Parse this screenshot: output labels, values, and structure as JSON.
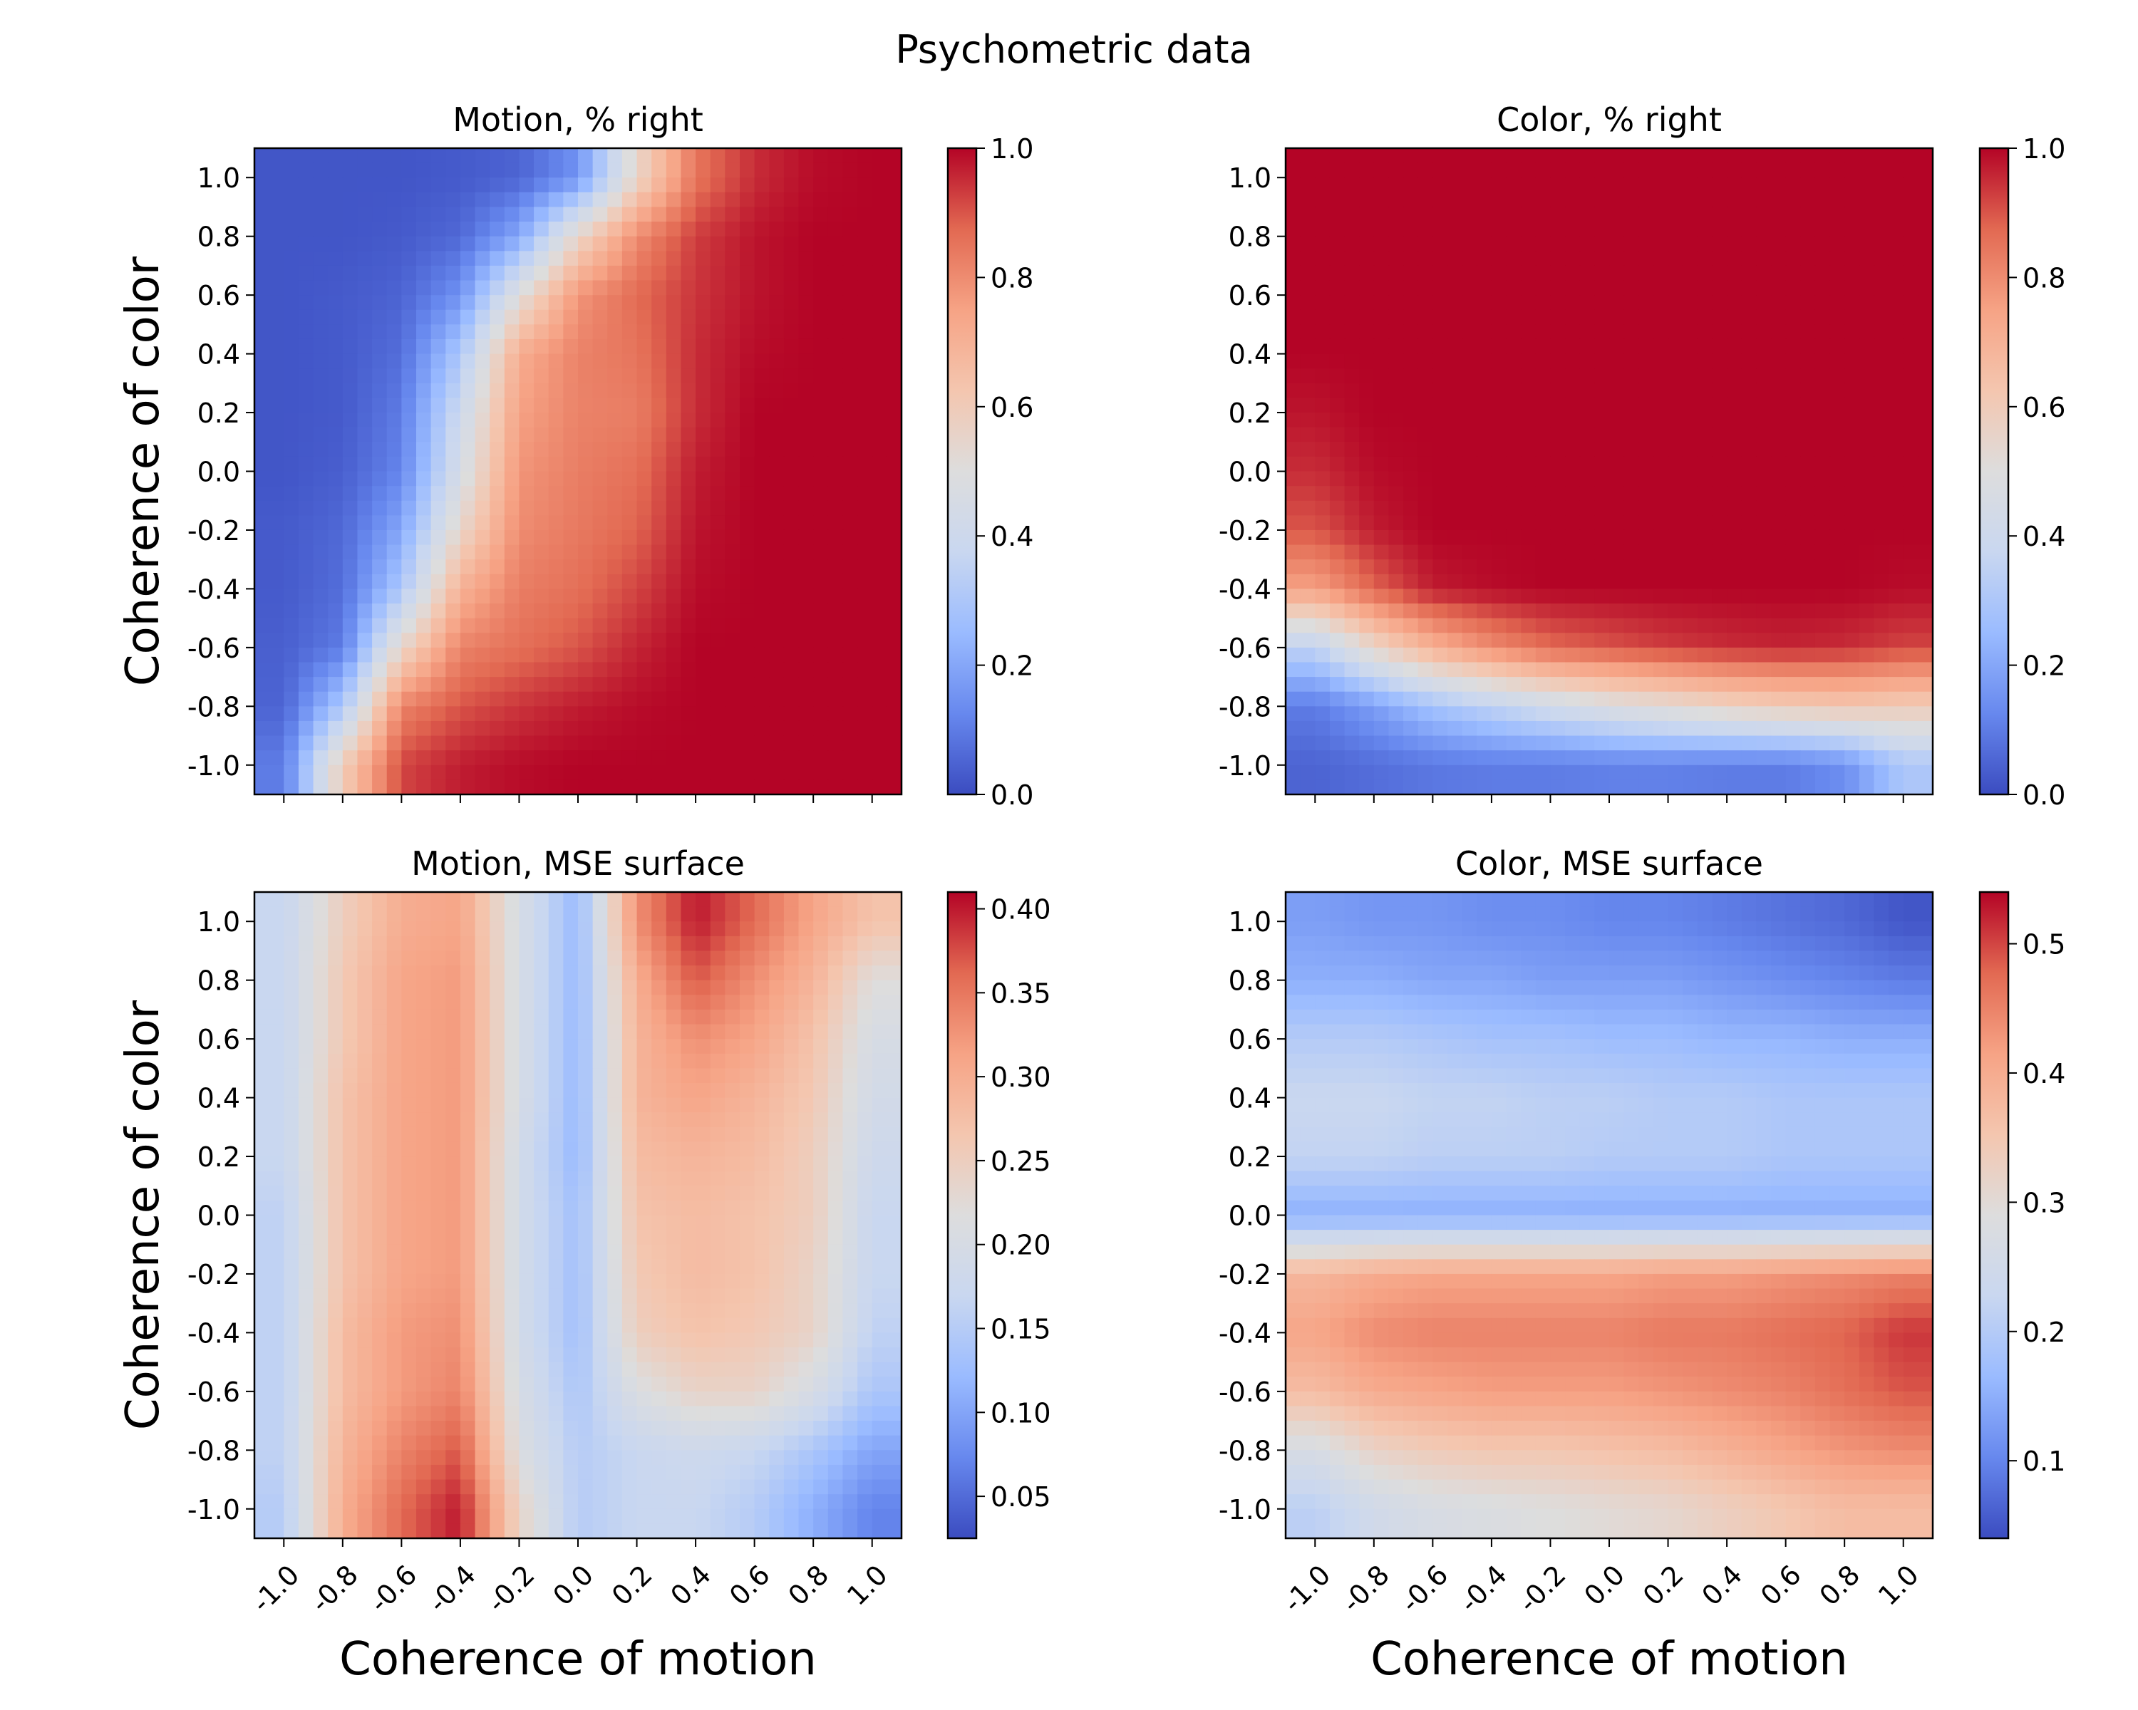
{
  "figure": {
    "suptitle": "Psychometric data"
  },
  "colors": {
    "coolwarm": [
      "#3b4cc0",
      "#6788ee",
      "#9abbff",
      "#c9d7f0",
      "#dddddd",
      "#f4c6af",
      "#f6a385",
      "#e26952",
      "#b40426"
    ]
  },
  "chart_data": [
    {
      "type": "heatmap",
      "title": "Motion, % right",
      "xlabel": "",
      "ylabel": "Coherence of color",
      "x_ticks": [
        "-1.0",
        "-0.8",
        "-0.6",
        "-0.4",
        "-0.2",
        "0.0",
        "0.2",
        "0.4",
        "0.6",
        "0.8",
        "1.0"
      ],
      "y_ticks": [
        "-1.0",
        "-0.8",
        "-0.6",
        "-0.4",
        "-0.2",
        "0.0",
        "0.2",
        "0.4",
        "0.6",
        "0.8",
        "1.0"
      ],
      "x_tick_labels_visible": false,
      "xlim": [
        -1.1,
        1.1
      ],
      "ylim": [
        -1.1,
        1.1
      ],
      "colorbar": {
        "vmin": 0.0,
        "vmax": 1.0,
        "ticks": [
          "0.0",
          "0.2",
          "0.4",
          "0.6",
          "0.8",
          "1.0"
        ]
      },
      "x": [
        -1.0,
        -0.8,
        -0.6,
        -0.4,
        -0.2,
        0.0,
        0.2,
        0.4,
        0.6,
        0.8,
        1.0
      ],
      "y": [
        1.0,
        0.8,
        0.6,
        0.4,
        0.2,
        0.0,
        -0.2,
        -0.4,
        -0.6,
        -0.8,
        -1.0
      ],
      "z": [
        [
          0.02,
          0.02,
          0.02,
          0.03,
          0.05,
          0.15,
          0.55,
          0.85,
          0.95,
          0.99,
          1.0
        ],
        [
          0.02,
          0.02,
          0.03,
          0.06,
          0.2,
          0.55,
          0.8,
          0.93,
          0.98,
          1.0,
          1.0
        ],
        [
          0.02,
          0.03,
          0.05,
          0.15,
          0.5,
          0.78,
          0.87,
          0.94,
          0.98,
          1.0,
          1.0
        ],
        [
          0.02,
          0.03,
          0.07,
          0.3,
          0.72,
          0.82,
          0.85,
          0.95,
          0.99,
          1.0,
          1.0
        ],
        [
          0.02,
          0.03,
          0.1,
          0.4,
          0.75,
          0.82,
          0.83,
          0.95,
          1.0,
          1.0,
          1.0
        ],
        [
          0.02,
          0.04,
          0.12,
          0.45,
          0.78,
          0.83,
          0.86,
          0.97,
          1.0,
          1.0,
          1.0
        ],
        [
          0.03,
          0.06,
          0.2,
          0.55,
          0.8,
          0.84,
          0.88,
          0.98,
          1.0,
          1.0,
          1.0
        ],
        [
          0.03,
          0.07,
          0.3,
          0.7,
          0.83,
          0.86,
          0.92,
          0.99,
          1.0,
          1.0,
          1.0
        ],
        [
          0.04,
          0.1,
          0.55,
          0.82,
          0.86,
          0.9,
          0.96,
          1.0,
          1.0,
          1.0,
          1.0
        ],
        [
          0.05,
          0.3,
          0.82,
          0.9,
          0.94,
          0.97,
          0.99,
          1.0,
          1.0,
          1.0,
          1.0
        ],
        [
          0.1,
          0.6,
          0.92,
          0.97,
          0.99,
          1.0,
          1.0,
          1.0,
          1.0,
          1.0,
          1.0
        ]
      ]
    },
    {
      "type": "heatmap",
      "title": "Color, % right",
      "xlabel": "",
      "ylabel": "",
      "x_ticks": [
        "-1.0",
        "-0.8",
        "-0.6",
        "-0.4",
        "-0.2",
        "0.0",
        "0.2",
        "0.4",
        "0.6",
        "0.8",
        "1.0"
      ],
      "y_ticks": [
        "-1.0",
        "-0.8",
        "-0.6",
        "-0.4",
        "-0.2",
        "0.0",
        "0.2",
        "0.4",
        "0.6",
        "0.8",
        "1.0"
      ],
      "x_tick_labels_visible": false,
      "xlim": [
        -1.1,
        1.1
      ],
      "ylim": [
        -1.1,
        1.1
      ],
      "colorbar": {
        "vmin": 0.0,
        "vmax": 1.0,
        "ticks": [
          "0.0",
          "0.2",
          "0.4",
          "0.6",
          "0.8",
          "1.0"
        ]
      },
      "x": [
        -1.0,
        -0.8,
        -0.6,
        -0.4,
        -0.2,
        0.0,
        0.2,
        0.4,
        0.6,
        0.8,
        1.0
      ],
      "y": [
        1.0,
        0.8,
        0.6,
        0.4,
        0.2,
        0.0,
        -0.2,
        -0.4,
        -0.6,
        -0.8,
        -1.0
      ],
      "z": [
        [
          1.0,
          1.0,
          1.0,
          1.0,
          1.0,
          1.0,
          1.0,
          1.0,
          1.0,
          1.0,
          1.0
        ],
        [
          1.0,
          1.0,
          1.0,
          1.0,
          1.0,
          1.0,
          1.0,
          1.0,
          1.0,
          1.0,
          1.0
        ],
        [
          1.0,
          1.0,
          1.0,
          1.0,
          1.0,
          1.0,
          1.0,
          1.0,
          1.0,
          1.0,
          1.0
        ],
        [
          1.0,
          1.0,
          1.0,
          1.0,
          1.0,
          1.0,
          1.0,
          1.0,
          1.0,
          1.0,
          1.0
        ],
        [
          0.98,
          1.0,
          1.0,
          1.0,
          1.0,
          1.0,
          1.0,
          1.0,
          1.0,
          1.0,
          1.0
        ],
        [
          0.95,
          0.99,
          1.0,
          1.0,
          1.0,
          1.0,
          1.0,
          1.0,
          1.0,
          1.0,
          1.0
        ],
        [
          0.9,
          0.97,
          1.0,
          1.0,
          1.0,
          1.0,
          1.0,
          1.0,
          1.0,
          1.0,
          1.0
        ],
        [
          0.75,
          0.88,
          0.97,
          0.99,
          1.0,
          1.0,
          1.0,
          1.0,
          1.0,
          1.0,
          0.99
        ],
        [
          0.35,
          0.55,
          0.7,
          0.8,
          0.87,
          0.9,
          0.93,
          0.95,
          0.96,
          0.95,
          0.92
        ],
        [
          0.1,
          0.18,
          0.28,
          0.35,
          0.42,
          0.48,
          0.52,
          0.57,
          0.6,
          0.62,
          0.6
        ],
        [
          0.05,
          0.07,
          0.09,
          0.1,
          0.1,
          0.11,
          0.11,
          0.1,
          0.1,
          0.14,
          0.3
        ]
      ]
    },
    {
      "type": "heatmap",
      "title": "Motion, MSE surface",
      "xlabel": "Coherence of motion",
      "ylabel": "Coherence of color",
      "x_ticks": [
        "-1.0",
        "-0.8",
        "-0.6",
        "-0.4",
        "-0.2",
        "0.0",
        "0.2",
        "0.4",
        "0.6",
        "0.8",
        "1.0"
      ],
      "y_ticks": [
        "-1.0",
        "-0.8",
        "-0.6",
        "-0.4",
        "-0.2",
        "0.0",
        "0.2",
        "0.4",
        "0.6",
        "0.8",
        "1.0"
      ],
      "x_tick_labels_visible": true,
      "xlim": [
        -1.1,
        1.1
      ],
      "ylim": [
        -1.1,
        1.1
      ],
      "colorbar": {
        "vmin": 0.025,
        "vmax": 0.41,
        "ticks": [
          "0.05",
          "0.10",
          "0.15",
          "0.20",
          "0.25",
          "0.30",
          "0.35",
          "0.40"
        ]
      },
      "x": [
        -1.0,
        -0.8,
        -0.6,
        -0.4,
        -0.2,
        0.0,
        0.2,
        0.4,
        0.6,
        0.8,
        1.0
      ],
      "y": [
        1.0,
        0.8,
        0.6,
        0.4,
        0.2,
        0.0,
        -0.2,
        -0.4,
        -0.6,
        -0.8,
        -1.0
      ],
      "z": [
        [
          0.17,
          0.25,
          0.3,
          0.31,
          0.2,
          0.12,
          0.33,
          0.4,
          0.36,
          0.31,
          0.27
        ],
        [
          0.17,
          0.26,
          0.31,
          0.32,
          0.2,
          0.12,
          0.3,
          0.37,
          0.33,
          0.29,
          0.22
        ],
        [
          0.17,
          0.26,
          0.31,
          0.32,
          0.2,
          0.12,
          0.29,
          0.33,
          0.31,
          0.27,
          0.2
        ],
        [
          0.17,
          0.27,
          0.31,
          0.32,
          0.2,
          0.12,
          0.29,
          0.31,
          0.29,
          0.26,
          0.19
        ],
        [
          0.17,
          0.27,
          0.31,
          0.32,
          0.19,
          0.12,
          0.28,
          0.29,
          0.28,
          0.25,
          0.18
        ],
        [
          0.16,
          0.27,
          0.31,
          0.32,
          0.19,
          0.13,
          0.27,
          0.28,
          0.27,
          0.25,
          0.17
        ],
        [
          0.16,
          0.27,
          0.31,
          0.32,
          0.19,
          0.13,
          0.26,
          0.28,
          0.27,
          0.24,
          0.17
        ],
        [
          0.16,
          0.28,
          0.32,
          0.33,
          0.19,
          0.13,
          0.25,
          0.27,
          0.26,
          0.24,
          0.16
        ],
        [
          0.16,
          0.28,
          0.32,
          0.34,
          0.2,
          0.14,
          0.21,
          0.24,
          0.24,
          0.2,
          0.14
        ],
        [
          0.16,
          0.29,
          0.34,
          0.37,
          0.21,
          0.15,
          0.17,
          0.18,
          0.17,
          0.14,
          0.1
        ],
        [
          0.15,
          0.3,
          0.36,
          0.4,
          0.24,
          0.15,
          0.17,
          0.17,
          0.15,
          0.11,
          0.07
        ]
      ]
    },
    {
      "type": "heatmap",
      "title": "Color, MSE surface",
      "xlabel": "Coherence of motion",
      "ylabel": "",
      "x_ticks": [
        "-1.0",
        "-0.8",
        "-0.6",
        "-0.4",
        "-0.2",
        "0.0",
        "0.2",
        "0.4",
        "0.6",
        "0.8",
        "1.0"
      ],
      "y_ticks": [
        "-1.0",
        "-0.8",
        "-0.6",
        "-0.4",
        "-0.2",
        "0.0",
        "0.2",
        "0.4",
        "0.6",
        "0.8",
        "1.0"
      ],
      "x_tick_labels_visible": true,
      "xlim": [
        -1.1,
        1.1
      ],
      "ylim": [
        -1.1,
        1.1
      ],
      "colorbar": {
        "vmin": 0.04,
        "vmax": 0.54,
        "ticks": [
          "0.1",
          "0.2",
          "0.3",
          "0.4",
          "0.5"
        ]
      },
      "x": [
        -1.0,
        -0.8,
        -0.6,
        -0.4,
        -0.2,
        0.0,
        0.2,
        0.4,
        0.6,
        0.8,
        1.0
      ],
      "y": [
        1.0,
        0.8,
        0.6,
        0.4,
        0.2,
        0.0,
        -0.2,
        -0.4,
        -0.6,
        -0.8,
        -1.0
      ],
      "z": [
        [
          0.13,
          0.12,
          0.12,
          0.11,
          0.11,
          0.1,
          0.1,
          0.09,
          0.08,
          0.07,
          0.05
        ],
        [
          0.15,
          0.15,
          0.14,
          0.14,
          0.13,
          0.13,
          0.13,
          0.12,
          0.11,
          0.1,
          0.09
        ],
        [
          0.2,
          0.2,
          0.19,
          0.18,
          0.18,
          0.17,
          0.17,
          0.16,
          0.16,
          0.15,
          0.15
        ],
        [
          0.23,
          0.23,
          0.22,
          0.22,
          0.21,
          0.21,
          0.2,
          0.2,
          0.19,
          0.19,
          0.19
        ],
        [
          0.22,
          0.22,
          0.21,
          0.21,
          0.21,
          0.2,
          0.2,
          0.2,
          0.19,
          0.19,
          0.19
        ],
        [
          0.15,
          0.15,
          0.15,
          0.15,
          0.15,
          0.15,
          0.15,
          0.15,
          0.15,
          0.15,
          0.15
        ],
        [
          0.38,
          0.4,
          0.41,
          0.41,
          0.41,
          0.41,
          0.42,
          0.42,
          0.43,
          0.44,
          0.45
        ],
        [
          0.41,
          0.44,
          0.45,
          0.45,
          0.45,
          0.45,
          0.46,
          0.46,
          0.47,
          0.48,
          0.51
        ],
        [
          0.37,
          0.4,
          0.41,
          0.42,
          0.42,
          0.42,
          0.43,
          0.44,
          0.45,
          0.47,
          0.49
        ],
        [
          0.27,
          0.32,
          0.34,
          0.35,
          0.35,
          0.36,
          0.37,
          0.39,
          0.41,
          0.43,
          0.44
        ],
        [
          0.21,
          0.25,
          0.27,
          0.28,
          0.29,
          0.3,
          0.31,
          0.33,
          0.35,
          0.37,
          0.37
        ]
      ]
    }
  ]
}
